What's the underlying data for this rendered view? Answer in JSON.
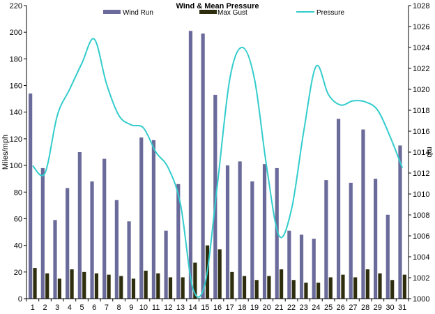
{
  "chart_data": {
    "type": "bar",
    "title": "Wind & Mean Pressure",
    "categories": [
      "1",
      "2",
      "3",
      "4",
      "5",
      "6",
      "7",
      "8",
      "9",
      "10",
      "11",
      "12",
      "13",
      "14",
      "15",
      "16",
      "17",
      "18",
      "19",
      "20",
      "21",
      "22",
      "23",
      "24",
      "25",
      "26",
      "27",
      "28",
      "29",
      "30",
      "31"
    ],
    "series": [
      {
        "name": "Wind Run",
        "type": "bar",
        "axis": "left",
        "color": "#6b6b9b",
        "values": [
          154,
          98,
          59,
          83,
          110,
          88,
          105,
          74,
          58,
          121,
          119,
          51,
          86,
          201,
          199,
          153,
          100,
          103,
          88,
          101,
          98,
          51,
          48,
          45,
          89,
          135,
          87,
          127,
          90,
          63,
          115
        ]
      },
      {
        "name": "Max Gust",
        "type": "bar",
        "axis": "left",
        "color": "#2e2e0e",
        "values": [
          23,
          19,
          15,
          22,
          20,
          19,
          18,
          17,
          15,
          21,
          19,
          16,
          16,
          27,
          40,
          37,
          20,
          17,
          14,
          17,
          22,
          14,
          12,
          12,
          16,
          18,
          16,
          22,
          19,
          14,
          18
        ]
      },
      {
        "name": "Pressure",
        "type": "line",
        "axis": "right",
        "color": "#33cccc",
        "values": [
          1012.7,
          1012,
          1017.5,
          1020,
          1022.5,
          1024.8,
          1020.5,
          1017.5,
          1016.6,
          1016.3,
          1014,
          1012.5,
          1009,
          1001,
          1001.5,
          1011,
          1021,
          1024,
          1021,
          1012.5,
          1006,
          1008.5,
          1016,
          1022.2,
          1019.5,
          1018.5,
          1018.9,
          1018.8,
          1018,
          1015.5,
          1012.5
        ]
      }
    ],
    "ylabel": "Miles/mph",
    "y2label": "mb",
    "ylim": [
      0,
      220
    ],
    "y_ticks": [
      "0",
      "20",
      "40",
      "60",
      "80",
      "100",
      "120",
      "140",
      "160",
      "180",
      "200",
      "220"
    ],
    "y2lim": [
      1000,
      1028
    ],
    "y2_ticks": [
      "1000",
      "1002",
      "1004",
      "1006",
      "1008",
      "1010",
      "1012",
      "1014",
      "1016",
      "1018",
      "1020",
      "1022",
      "1024",
      "1026",
      "1028"
    ],
    "grid": false,
    "legend_position": "top"
  }
}
